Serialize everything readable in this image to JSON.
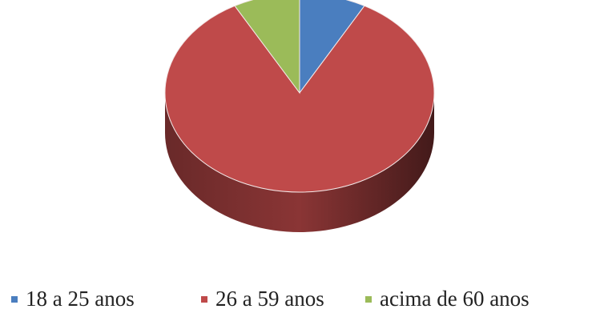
{
  "chart_data": {
    "type": "pie",
    "title": "",
    "categories": [
      "18 a 25 anos",
      "26 a 59 anos",
      "acima de 60 anos"
    ],
    "values": [
      8,
      84,
      8
    ],
    "colors": [
      "#4a7ebf",
      "#bf4a4a",
      "#9bbb59"
    ],
    "legend": "bottom",
    "three_d": true
  }
}
